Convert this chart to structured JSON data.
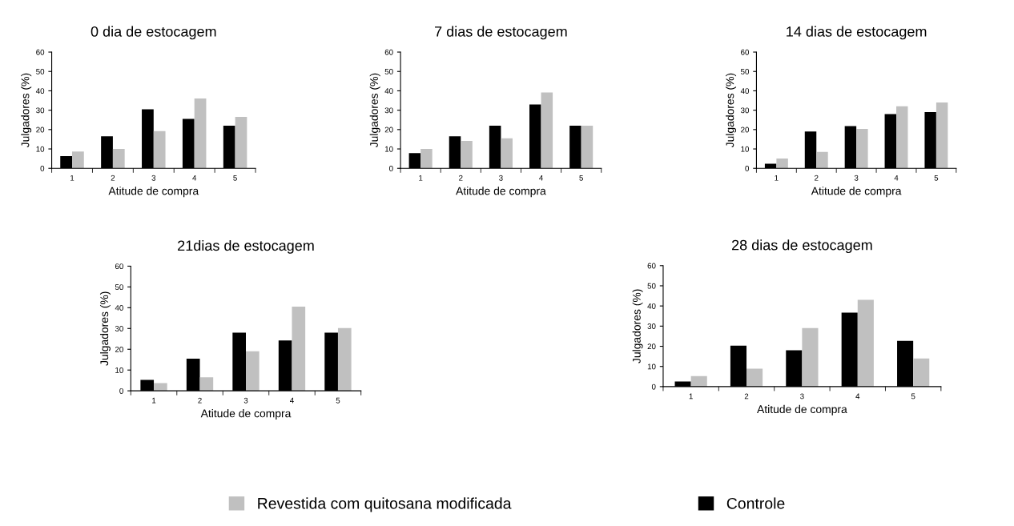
{
  "chart_data": [
    {
      "type": "bar",
      "title": "0 dia de estocagem",
      "xlabel": "Atitude de compra",
      "ylabel": "Julgadores (%)",
      "categories": [
        "1",
        "2",
        "3",
        "4",
        "5"
      ],
      "ylim": [
        0,
        60
      ],
      "yticks": [
        0,
        10,
        20,
        30,
        40,
        50,
        60
      ],
      "legend": "bottom",
      "series": [
        {
          "name": "Controle",
          "color": "#000000",
          "values": [
            6.3,
            16.5,
            30.5,
            25.5,
            22
          ]
        },
        {
          "name": "Revestida com quitosana modificada",
          "color": "#c0c0c0",
          "values": [
            8.7,
            10,
            19.2,
            36,
            26.5
          ]
        }
      ]
    },
    {
      "type": "bar",
      "title": "7 dias de estocagem",
      "xlabel": "Atitude de compra",
      "ylabel": "Julgadores (%)",
      "categories": [
        "1",
        "2",
        "3",
        "4",
        "5"
      ],
      "ylim": [
        0,
        60
      ],
      "yticks": [
        0,
        10,
        20,
        30,
        40,
        50,
        60
      ],
      "series": [
        {
          "color": "#000000",
          "values": [
            7.8,
            16.5,
            22,
            33,
            22
          ]
        },
        {
          "color": "#c0c0c0",
          "values": [
            10,
            14.2,
            15.5,
            39.2,
            22
          ]
        }
      ]
    },
    {
      "type": "bar",
      "title": "14 dias de estocagem",
      "xlabel": "Atitude de compra",
      "ylabel": "Julgadores (%)",
      "categories": [
        "1",
        "2",
        "3",
        "4",
        "5"
      ],
      "ylim": [
        0,
        60
      ],
      "yticks": [
        0,
        10,
        20,
        30,
        40,
        50,
        60
      ],
      "series": [
        {
          "color": "#000000",
          "values": [
            2.4,
            19,
            21.8,
            28,
            29
          ]
        },
        {
          "color": "#c0c0c0",
          "values": [
            5.1,
            8.5,
            20.3,
            32,
            34
          ]
        }
      ]
    },
    {
      "type": "bar",
      "title": "21dias de estocagem",
      "xlabel": "Atitude de compra",
      "ylabel": "Julgadores (%)",
      "categories": [
        "1",
        "2",
        "3",
        "4",
        "5"
      ],
      "ylim": [
        0,
        60
      ],
      "yticks": [
        0,
        10,
        20,
        30,
        40,
        50,
        60
      ],
      "series": [
        {
          "color": "#000000",
          "values": [
            5.3,
            15.5,
            28,
            24.2,
            28
          ]
        },
        {
          "color": "#c0c0c0",
          "values": [
            3.7,
            6.5,
            19,
            40.5,
            30.2
          ]
        }
      ]
    },
    {
      "type": "bar",
      "title": "28 dias de estocagem",
      "xlabel": "Atitude de compra",
      "ylabel": "Julgadores (%)",
      "categories": [
        "1",
        "2",
        "3",
        "4",
        "5"
      ],
      "ylim": [
        0,
        60
      ],
      "yticks": [
        0,
        10,
        20,
        30,
        40,
        50,
        60
      ],
      "series": [
        {
          "color": "#000000",
          "values": [
            2.5,
            20.3,
            18,
            36.7,
            22.7
          ]
        },
        {
          "color": "#c0c0c0",
          "values": [
            5.2,
            8.9,
            29,
            43,
            14
          ]
        }
      ]
    }
  ]
}
